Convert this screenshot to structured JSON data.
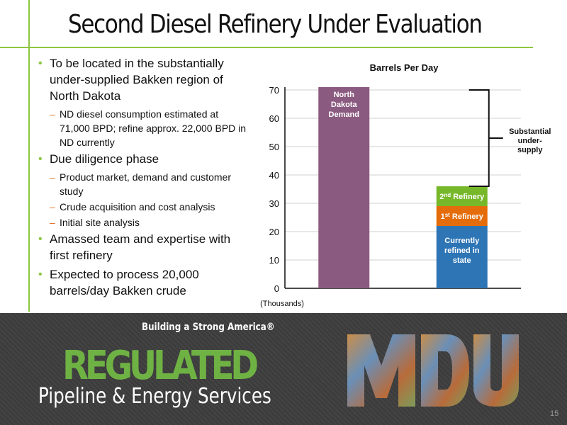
{
  "title": "Second Diesel Refinery Under Evaluation",
  "bullets": [
    {
      "text": "To be located in the substantially under-supplied Bakken region of North Dakota",
      "sub": [
        "ND diesel consumption estimated at 71,000 BPD; refine approx. 22,000 BPD in ND currently"
      ]
    },
    {
      "text": "Due diligence phase",
      "sub": [
        "Product market, demand and customer study",
        "Crude acquisition and cost analysis",
        "Initial site analysis"
      ]
    },
    {
      "text": "Amassed team and expertise with first refinery",
      "sub": []
    },
    {
      "text": "Expected to process 20,000 barrels/day Bakken crude",
      "sub": []
    }
  ],
  "chart_data": {
    "type": "bar",
    "title": "Barrels Per Day",
    "unit_label": "(Thousands)",
    "ylim": [
      0,
      70
    ],
    "yticks": [
      0,
      10,
      20,
      30,
      40,
      50,
      60,
      70
    ],
    "grid": true,
    "bars": [
      {
        "segments": [
          {
            "label": "North Dakota Demand",
            "value": 71,
            "color": "#8b5a80"
          }
        ]
      },
      {
        "segments": [
          {
            "label": "Currently refined in state",
            "value": 22,
            "color": "#2e75b6"
          },
          {
            "label": "1st Refinery",
            "value": 7,
            "color": "#e46c0a"
          },
          {
            "label": "2nd Refinery",
            "value": 7,
            "color": "#77b82a"
          }
        ]
      }
    ],
    "annotation": {
      "label": "Substantial under-supply",
      "from": 36,
      "to": 70
    }
  },
  "footer": {
    "tagline": "Building a Strong America®",
    "regulated": "REGULATED",
    "pipeline": "Pipeline & Energy Services",
    "logo": "MDU",
    "page": "15"
  },
  "colors": {
    "accent": "#8dc63f",
    "dash": "#e1701f",
    "footer_bg": "#3c3c3c"
  }
}
